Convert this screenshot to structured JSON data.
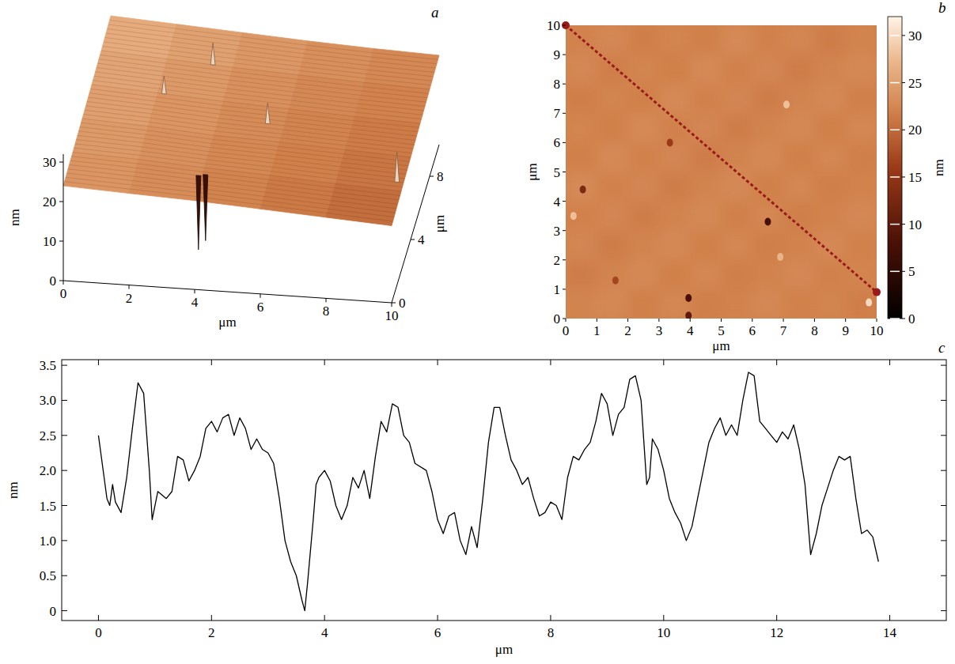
{
  "chart_data": [
    {
      "type": "surface3d",
      "title": "a",
      "xlabel": "μm",
      "ylabel": "μm",
      "zlabel": "nm",
      "xlim": [
        0,
        10
      ],
      "ylim": [
        0,
        10
      ],
      "zlim": [
        0,
        32
      ],
      "xticks": [
        0,
        2,
        4,
        6,
        8,
        10
      ],
      "yticks": [
        0,
        4,
        8
      ],
      "zticks": [
        0,
        10,
        20,
        30
      ],
      "x": [
        0,
        2,
        4,
        6,
        8,
        10
      ],
      "y": [
        0,
        2,
        4,
        6,
        8,
        10
      ],
      "heights": [
        [
          24.0,
          23.2,
          22.5,
          21.5,
          20.5,
          19.5
        ],
        [
          24.5,
          23.8,
          22.8,
          22.0,
          21.0,
          20.2
        ],
        [
          25.0,
          24.2,
          23.0,
          22.4,
          21.6,
          20.8
        ],
        [
          25.6,
          24.6,
          23.6,
          22.8,
          22.0,
          21.4
        ],
        [
          26.2,
          25.2,
          24.2,
          23.4,
          22.6,
          22.0
        ],
        [
          27.0,
          26.0,
          25.0,
          24.0,
          23.2,
          22.6
        ]
      ],
      "spikes": [
        {
          "x": 3.9,
          "y": 1.5,
          "z": 4
        },
        {
          "x": 4.1,
          "y": 1.6,
          "z": 6
        },
        {
          "x": 9.8,
          "y": 2.5,
          "z": 28
        },
        {
          "x": 3.4,
          "y": 8,
          "z": 30
        },
        {
          "x": 2.2,
          "y": 6,
          "z": 29
        },
        {
          "x": 5.5,
          "y": 5,
          "z": 28
        }
      ]
    },
    {
      "type": "heatmap",
      "title": "b",
      "xlabel": "μm",
      "ylabel": "μm",
      "xlim": [
        0,
        10
      ],
      "ylim": [
        0,
        10
      ],
      "xticks": [
        0,
        1,
        2,
        3,
        4,
        5,
        6,
        7,
        8,
        9,
        10
      ],
      "yticks": [
        0,
        1,
        2,
        3,
        4,
        5,
        6,
        7,
        8,
        9,
        10
      ],
      "cells": [
        [
          22.0,
          22.6,
          21.6,
          22.3,
          21.8,
          22.8,
          21.9,
          22.4,
          21.5,
          22.2
        ],
        [
          22.6,
          21.6,
          22.3,
          21.8,
          22.8,
          21.9,
          22.4,
          21.5,
          22.2,
          22.7
        ],
        [
          21.6,
          22.3,
          21.8,
          22.8,
          21.9,
          22.4,
          21.5,
          22.2,
          22.7,
          21.8
        ],
        [
          22.3,
          21.8,
          22.8,
          21.9,
          22.4,
          21.5,
          22.2,
          22.7,
          21.8,
          22.5
        ],
        [
          21.8,
          22.8,
          21.9,
          22.4,
          21.5,
          22.2,
          22.7,
          21.8,
          22.5,
          21.7
        ],
        [
          22.8,
          21.9,
          22.4,
          21.5,
          22.2,
          22.7,
          21.8,
          22.5,
          21.7,
          22.1
        ],
        [
          21.9,
          22.4,
          21.5,
          22.2,
          22.7,
          21.8,
          22.5,
          21.7,
          22.1,
          22.6
        ],
        [
          22.4,
          21.5,
          22.2,
          22.7,
          21.8,
          22.5,
          21.7,
          22.1,
          22.6,
          21.9
        ],
        [
          21.5,
          22.2,
          22.7,
          21.8,
          22.5,
          21.7,
          22.1,
          22.6,
          21.9,
          22.3
        ],
        [
          22.2,
          22.7,
          21.8,
          22.5,
          21.7,
          22.1,
          22.6,
          21.9,
          22.3,
          21.6
        ]
      ],
      "spots": [
        {
          "x": 6.5,
          "y": 3.3,
          "z": 8
        },
        {
          "x": 0.55,
          "y": 4.4,
          "z": 13
        },
        {
          "x": 3.95,
          "y": 0.7,
          "z": 8
        },
        {
          "x": 3.95,
          "y": 0.1,
          "z": 10
        },
        {
          "x": 3.35,
          "y": 6.0,
          "z": 16
        },
        {
          "x": 1.6,
          "y": 1.3,
          "z": 17
        },
        {
          "x": 7.1,
          "y": 7.3,
          "z": 28
        },
        {
          "x": 0.25,
          "y": 3.5,
          "z": 28
        },
        {
          "x": 9.75,
          "y": 0.55,
          "z": 30
        },
        {
          "x": 6.9,
          "y": 2.1,
          "z": 27
        }
      ],
      "profile": {
        "x": [
          0,
          10
        ],
        "y": [
          10,
          0.9
        ]
      },
      "colorbar": {
        "lim": [
          0,
          32
        ],
        "ticks": [
          0,
          5,
          10,
          15,
          20,
          25,
          30
        ],
        "label": "nm"
      }
    },
    {
      "type": "line",
      "title": "c",
      "xlabel": "μm",
      "ylabel": "nm",
      "color": "#000000",
      "xlim": [
        -0.65,
        15
      ],
      "ylim": [
        -0.14,
        3.58
      ],
      "xticks": [
        0,
        2,
        4,
        6,
        8,
        10,
        12,
        14
      ],
      "yticks": [
        0,
        0.5,
        {
          "value": 1,
          "label": "1.0"
        },
        1.5,
        {
          "value": 2,
          "label": "2.0"
        },
        2.5,
        {
          "value": 3,
          "label": "3.0"
        },
        3.5
      ],
      "x": [
        0,
        0.1,
        0.15,
        0.2,
        0.25,
        0.3,
        0.4,
        0.5,
        0.6,
        0.7,
        0.8,
        0.9,
        0.95,
        1.05,
        1.2,
        1.3,
        1.4,
        1.5,
        1.6,
        1.7,
        1.8,
        1.9,
        2.0,
        2.1,
        2.2,
        2.3,
        2.4,
        2.5,
        2.6,
        2.7,
        2.8,
        2.9,
        3.0,
        3.1,
        3.2,
        3.3,
        3.4,
        3.5,
        3.6,
        3.65,
        3.7,
        3.8,
        3.85,
        3.9,
        4.0,
        4.1,
        4.2,
        4.3,
        4.4,
        4.5,
        4.6,
        4.7,
        4.8,
        4.9,
        5.0,
        5.1,
        5.2,
        5.3,
        5.4,
        5.5,
        5.6,
        5.8,
        5.9,
        6.0,
        6.1,
        6.2,
        6.3,
        6.4,
        6.5,
        6.6,
        6.7,
        6.8,
        6.9,
        7.0,
        7.1,
        7.2,
        7.3,
        7.4,
        7.5,
        7.6,
        7.7,
        7.8,
        7.9,
        8.0,
        8.1,
        8.2,
        8.3,
        8.4,
        8.5,
        8.6,
        8.7,
        8.8,
        8.9,
        9.0,
        9.1,
        9.2,
        9.3,
        9.4,
        9.5,
        9.6,
        9.7,
        9.75,
        9.8,
        9.9,
        10.0,
        10.1,
        10.2,
        10.3,
        10.4,
        10.5,
        10.6,
        10.7,
        10.8,
        10.9,
        11.0,
        11.1,
        11.2,
        11.3,
        11.4,
        11.5,
        11.6,
        11.7,
        11.8,
        11.9,
        12.0,
        12.1,
        12.2,
        12.3,
        12.4,
        12.5,
        12.6,
        12.7,
        12.8,
        12.9,
        13.0,
        13.1,
        13.2,
        13.3,
        13.4,
        13.5,
        13.6,
        13.7,
        13.8
      ],
      "values": [
        2.5,
        1.9,
        1.6,
        1.5,
        1.8,
        1.55,
        1.4,
        1.9,
        2.6,
        3.25,
        3.1,
        2.0,
        1.3,
        1.7,
        1.6,
        1.7,
        2.2,
        2.15,
        1.85,
        2.0,
        2.2,
        2.6,
        2.7,
        2.55,
        2.75,
        2.8,
        2.5,
        2.75,
        2.6,
        2.3,
        2.45,
        2.3,
        2.25,
        2.1,
        1.6,
        1.0,
        0.7,
        0.5,
        0.15,
        0.0,
        0.4,
        1.3,
        1.8,
        1.9,
        2.0,
        1.85,
        1.5,
        1.3,
        1.5,
        1.9,
        1.75,
        2.0,
        1.6,
        2.2,
        2.7,
        2.55,
        2.95,
        2.9,
        2.5,
        2.4,
        2.1,
        2.0,
        1.7,
        1.3,
        1.1,
        1.35,
        1.4,
        1.0,
        0.8,
        1.2,
        0.9,
        1.6,
        2.4,
        2.9,
        2.9,
        2.5,
        2.15,
        2.0,
        1.8,
        1.9,
        1.6,
        1.35,
        1.4,
        1.55,
        1.5,
        1.3,
        1.9,
        2.2,
        2.15,
        2.3,
        2.4,
        2.7,
        3.1,
        2.95,
        2.5,
        2.8,
        2.9,
        3.3,
        3.35,
        3.0,
        1.8,
        1.9,
        2.45,
        2.3,
        2.0,
        1.6,
        1.4,
        1.25,
        1.0,
        1.2,
        1.6,
        2.0,
        2.4,
        2.6,
        2.75,
        2.5,
        2.65,
        2.5,
        3.0,
        3.4,
        3.35,
        2.7,
        2.6,
        2.5,
        2.4,
        2.55,
        2.45,
        2.65,
        2.3,
        1.8,
        0.8,
        1.1,
        1.5,
        1.75,
        2.0,
        2.2,
        2.15,
        2.2,
        1.6,
        1.1,
        1.15,
        1.05,
        0.7
      ]
    }
  ]
}
